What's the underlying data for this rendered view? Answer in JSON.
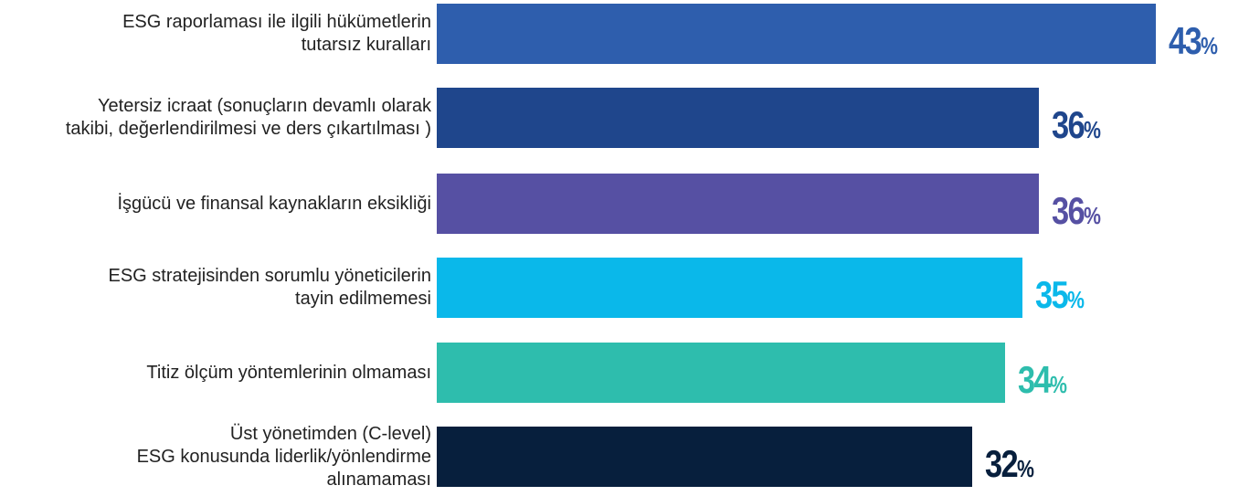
{
  "chart_data": {
    "type": "bar",
    "orientation": "horizontal",
    "categories": [
      "ESG raporlaması ile ilgili hükümetlerin\ntutarsız kuralları",
      "Yetersiz icraat (sonuçların devamlı olarak\ntakibi, değerlendirilmesi ve ders çıkartılması )",
      "İşgücü ve finansal kaynakların eksikliği",
      "ESG stratejisinden sorumlu yöneticilerin\ntayin edilmemesi",
      "Titiz ölçüm yöntemlerinin olmaması",
      "Üst yönetimden (C-level)\nESG konusunda liderlik/yönlendirme\nalınamaması"
    ],
    "values": [
      43,
      36,
      36,
      35,
      34,
      32
    ],
    "value_labels": [
      "43",
      "36",
      "36",
      "35",
      "34",
      "32"
    ],
    "value_unit": "%",
    "colors": [
      "#2e5ead",
      "#1f468c",
      "#5650a3",
      "#0ab8ea",
      "#2ebdad",
      "#071f3d"
    ],
    "title": "",
    "xlabel": "",
    "ylabel": "",
    "xlim": [
      0,
      43
    ],
    "grid": false,
    "legend": "none"
  }
}
